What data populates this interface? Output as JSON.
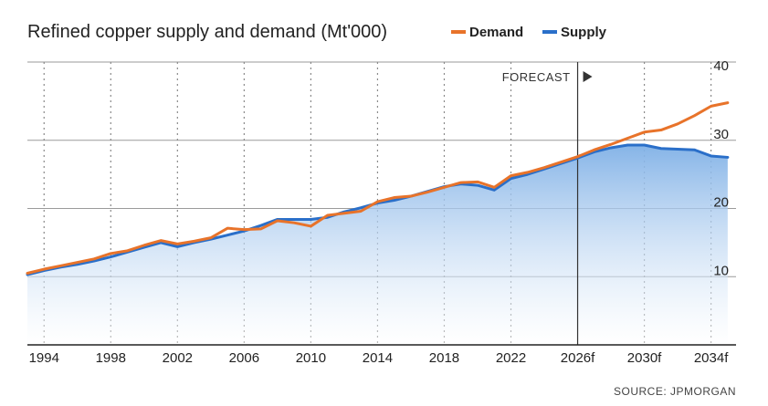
{
  "chart_data": {
    "type": "area",
    "title": "Refined copper supply and demand (Mt'000)",
    "legend": [
      {
        "name": "Demand",
        "color": "#e8732a"
      },
      {
        "name": "Supply",
        "color": "#2a6fc9"
      }
    ],
    "x": [
      1993,
      1994,
      1995,
      1996,
      1997,
      1998,
      1999,
      2000,
      2001,
      2002,
      2003,
      2004,
      2005,
      2006,
      2007,
      2008,
      2009,
      2010,
      2011,
      2012,
      2013,
      2014,
      2015,
      2016,
      2017,
      2018,
      2019,
      2020,
      2021,
      2022,
      2023,
      2024,
      2025,
      2026,
      2027,
      2028,
      2029,
      2030,
      2031,
      2032,
      2033,
      2034,
      2035
    ],
    "series": [
      {
        "name": "Demand",
        "color": "#e8732a",
        "values": [
          10.5,
          11.1,
          11.6,
          12.1,
          12.6,
          13.4,
          13.8,
          14.6,
          15.3,
          14.8,
          15.2,
          15.7,
          17.1,
          16.9,
          17.0,
          18.2,
          17.9,
          17.4,
          19.0,
          19.3,
          19.6,
          21.0,
          21.6,
          21.8,
          22.4,
          23.1,
          23.8,
          23.9,
          23.1,
          24.8,
          25.3,
          26.0,
          26.8,
          27.6,
          28.6,
          29.4,
          30.3,
          31.2,
          31.5,
          32.4,
          33.6,
          35.0,
          35.5
        ]
      },
      {
        "name": "Supply",
        "color": "#2a6fc9",
        "values": [
          10.3,
          10.9,
          11.4,
          11.8,
          12.3,
          12.9,
          13.6,
          14.3,
          15.0,
          14.4,
          15.0,
          15.5,
          16.1,
          16.7,
          17.5,
          18.4,
          18.4,
          18.4,
          18.7,
          19.5,
          20.1,
          20.8,
          21.2,
          21.8,
          22.5,
          23.2,
          23.6,
          23.4,
          22.7,
          24.4,
          25.0,
          25.8,
          26.6,
          27.4,
          28.3,
          28.9,
          29.3,
          29.3,
          28.8,
          28.7,
          28.6,
          27.7,
          27.5
        ]
      }
    ],
    "xticks": [
      {
        "x": 1994,
        "label": "1994"
      },
      {
        "x": 1998,
        "label": "1998"
      },
      {
        "x": 2002,
        "label": "2002"
      },
      {
        "x": 2006,
        "label": "2006"
      },
      {
        "x": 2010,
        "label": "2010"
      },
      {
        "x": 2014,
        "label": "2014"
      },
      {
        "x": 2018,
        "label": "2018"
      },
      {
        "x": 2022,
        "label": "2022"
      },
      {
        "x": 2026,
        "label": "2026f"
      },
      {
        "x": 2030,
        "label": "2030f"
      },
      {
        "x": 2034,
        "label": "2034f"
      }
    ],
    "yticks": [
      {
        "y": 10,
        "label": "10"
      },
      {
        "y": 20,
        "label": "20"
      },
      {
        "y": 30,
        "label": "30"
      },
      {
        "y": 40,
        "label": "40"
      }
    ],
    "xlim": [
      1993,
      2035.5
    ],
    "ylim": [
      0,
      40
    ],
    "forecast": {
      "x": 2026,
      "label": "FORECAST"
    },
    "grid": true,
    "legend_position": "top"
  },
  "source": "SOURCE: JPMORGAN"
}
